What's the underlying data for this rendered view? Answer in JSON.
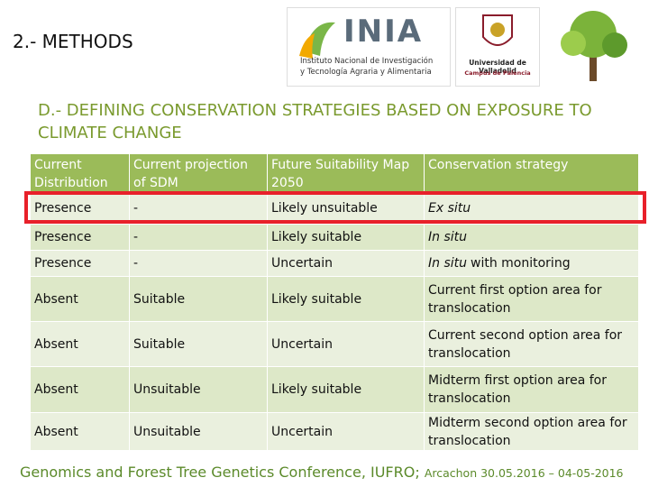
{
  "header": {
    "title": "2.- METHODS"
  },
  "logos": {
    "inia_name": "INIA",
    "inia_line1": "Instituto Nacional de Investigación",
    "inia_line2": "y Tecnología Agraria y Alimentaria",
    "uva_name": "Universidad de Valladolid",
    "uva_campus": "Campus de Palencia"
  },
  "section": {
    "title": "D.- DEFINING CONSERVATION STRATEGIES BASED ON EXPOSURE TO CLIMATE CHANGE"
  },
  "table": {
    "columns": [
      "Current Distribution",
      "Current projection of SDM",
      "Future Suitability Map 2050",
      "Conservation strategy"
    ],
    "rows": [
      [
        "Presence",
        "-",
        "Likely unsuitable",
        [
          {
            "text": "Ex situ",
            "italic": true
          }
        ]
      ],
      [
        "Presence",
        "-",
        "Likely suitable",
        [
          {
            "text": "In situ",
            "italic": true
          }
        ]
      ],
      [
        "Presence",
        "-",
        "Uncertain",
        [
          {
            "text": "In situ",
            "italic": true
          },
          {
            "text": "with monitoring",
            "italic": false
          }
        ]
      ],
      [
        "Absent",
        "Suitable",
        "Likely suitable",
        [
          {
            "text": "Current first option area for translocation",
            "italic": false
          }
        ]
      ],
      [
        "Absent",
        "Suitable",
        "Uncertain",
        [
          {
            "text": "Current second option area for translocation",
            "italic": false
          }
        ]
      ],
      [
        "Absent",
        "Unsuitable",
        "Likely suitable",
        [
          {
            "text": "Midterm first option area for translocation",
            "italic": false
          }
        ]
      ],
      [
        "Absent",
        "Unsuitable",
        "Uncertain",
        [
          {
            "text": "Midterm second option area for translocation",
            "italic": false
          }
        ]
      ]
    ],
    "highlighted_row": 0
  },
  "footer": {
    "conference": "Genomics and Forest Tree Genetics Conference, IUFRO;",
    "place_date": "Arcachon 30.05.2016 – 04-05-2016"
  }
}
